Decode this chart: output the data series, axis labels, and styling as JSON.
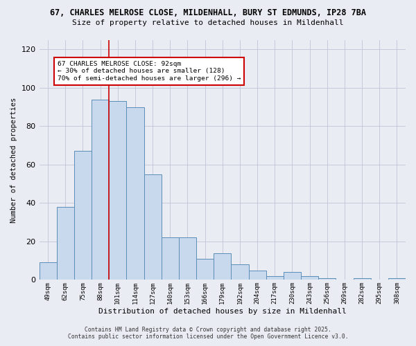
{
  "title_line1": "67, CHARLES MELROSE CLOSE, MILDENHALL, BURY ST EDMUNDS, IP28 7BA",
  "title_line2": "Size of property relative to detached houses in Mildenhall",
  "xlabel": "Distribution of detached houses by size in Mildenhall",
  "ylabel": "Number of detached properties",
  "categories": [
    "49sqm",
    "62sqm",
    "75sqm",
    "88sqm",
    "101sqm",
    "114sqm",
    "127sqm",
    "140sqm",
    "153sqm",
    "166sqm",
    "179sqm",
    "192sqm",
    "204sqm",
    "217sqm",
    "230sqm",
    "243sqm",
    "256sqm",
    "269sqm",
    "282sqm",
    "295sqm",
    "308sqm"
  ],
  "values": [
    9,
    38,
    67,
    94,
    93,
    90,
    55,
    22,
    22,
    11,
    14,
    8,
    5,
    2,
    4,
    2,
    1,
    0,
    1,
    0,
    1
  ],
  "bar_color": "#c9d9ed",
  "bar_edge_color": "#5b8db8",
  "vline_x": 3.5,
  "vline_color": "#cc0000",
  "annotation_title": "67 CHARLES MELROSE CLOSE: 92sqm",
  "annotation_line2": "← 30% of detached houses are smaller (128)",
  "annotation_line3": "70% of semi-detached houses are larger (296) →",
  "annotation_box_color": "#ffffff",
  "annotation_border_color": "#cc0000",
  "ylim": [
    0,
    125
  ],
  "yticks": [
    0,
    20,
    40,
    60,
    80,
    100,
    120
  ],
  "grid_color": "#c0c4d8",
  "bg_color": "#eaecf4",
  "footer_line1": "Contains HM Land Registry data © Crown copyright and database right 2025.",
  "footer_line2": "Contains public sector information licensed under the Open Government Licence v3.0."
}
